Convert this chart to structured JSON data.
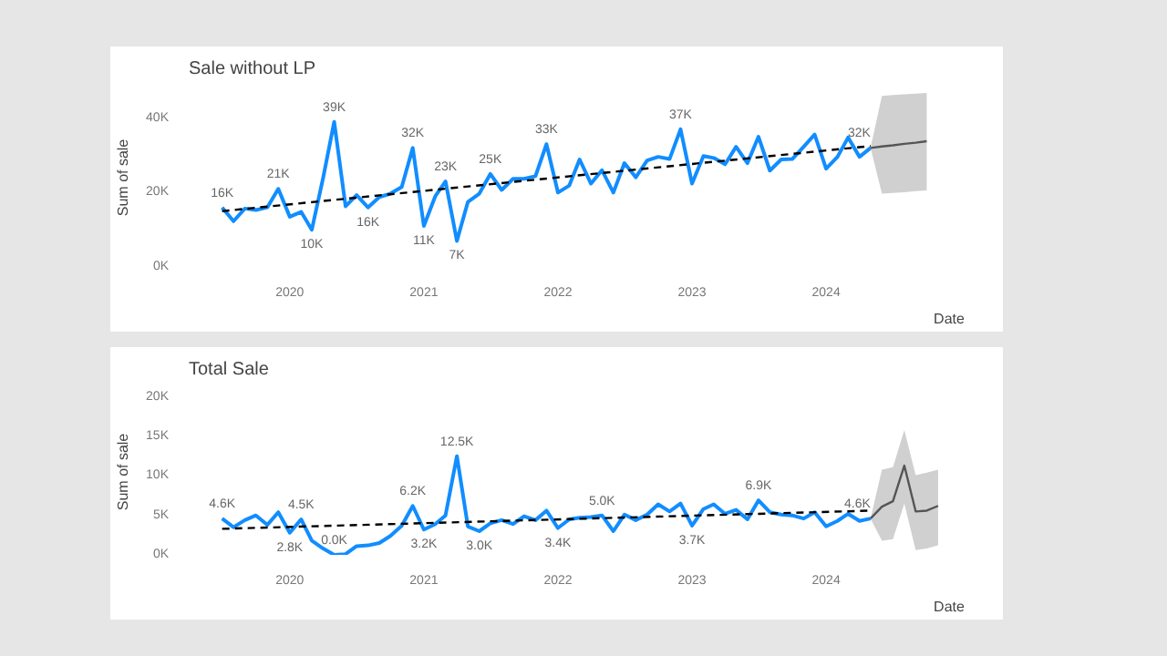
{
  "chart_data": [
    {
      "type": "line",
      "title": "Sale without LP",
      "xlabel": "Date",
      "ylabel": "Sum of sale",
      "xlim": [
        "2019-04",
        "2024-12"
      ],
      "xticks": [
        "2020",
        "2021",
        "2022",
        "2023",
        "2024"
      ],
      "ylim": [
        0,
        48
      ],
      "yticks": [
        {
          "value": 0,
          "label": "0K"
        },
        {
          "value": 20,
          "label": "20K"
        },
        {
          "value": 40,
          "label": "40K"
        }
      ],
      "series": [
        {
          "color": "#118dff",
          "x": [
            "2019-07",
            "2019-08",
            "2019-09",
            "2019-10",
            "2019-11",
            "2019-12",
            "2020-01",
            "2020-02",
            "2020-03",
            "2020-04",
            "2020-05",
            "2020-06",
            "2020-07",
            "2020-08",
            "2020-09",
            "2020-10",
            "2020-11",
            "2020-12",
            "2021-01",
            "2021-02",
            "2021-03",
            "2021-04",
            "2021-05",
            "2021-06",
            "2021-07",
            "2021-08",
            "2021-09",
            "2021-10",
            "2021-11",
            "2021-12",
            "2022-01",
            "2022-02",
            "2022-03",
            "2022-04",
            "2022-05",
            "2022-06",
            "2022-07",
            "2022-08",
            "2022-09",
            "2022-10",
            "2022-11",
            "2022-12",
            "2023-01",
            "2023-02",
            "2023-03",
            "2023-04",
            "2023-05",
            "2023-06",
            "2023-07",
            "2023-08",
            "2023-09",
            "2023-10",
            "2023-11",
            "2023-12",
            "2024-01",
            "2024-02",
            "2024-03",
            "2024-04",
            "2024-05"
          ],
          "values": [
            16,
            12.3,
            15.7,
            15.3,
            16,
            21,
            13.5,
            14.8,
            10,
            24,
            39,
            16.3,
            19.3,
            16,
            18.8,
            19.7,
            21.5,
            32,
            11,
            19,
            23,
            7,
            17.5,
            19.7,
            25,
            20.7,
            23.7,
            23.7,
            24.4,
            33,
            20,
            21.9,
            28.9,
            22.4,
            26,
            20,
            27.9,
            24.1,
            28.6,
            29.6,
            29,
            37,
            22.4,
            29.8,
            29.3,
            27.6,
            32.3,
            27.9,
            35,
            25.9,
            28.9,
            29,
            32.3,
            35.6,
            26.4,
            29.6,
            34.8,
            29.6,
            32
          ],
          "value_labels": [
            "16K",
            null,
            null,
            null,
            null,
            "21K",
            null,
            null,
            "10K",
            null,
            "39K",
            null,
            null,
            "16K",
            null,
            null,
            null,
            "32K",
            "11K",
            null,
            "23K",
            "7K",
            null,
            null,
            "25K",
            null,
            null,
            null,
            null,
            "33K",
            null,
            null,
            null,
            null,
            null,
            null,
            null,
            null,
            null,
            null,
            null,
            "37K",
            null,
            null,
            null,
            null,
            null,
            null,
            null,
            null,
            null,
            null,
            null,
            null,
            null,
            null,
            null,
            null,
            "32K"
          ]
        },
        {
          "color": "#000000",
          "line_style": "dashed",
          "x": [
            "2019-07",
            "2024-05"
          ],
          "values": [
            15,
            32.5
          ]
        },
        {
          "color": "#555555",
          "x": [
            "2024-05",
            "2024-06",
            "2024-07",
            "2024-08",
            "2024-09",
            "2024-10"
          ],
          "values": [
            32,
            32.4,
            32.7,
            33.1,
            33.4,
            33.8
          ],
          "lower": [
            32,
            19.7,
            19.9,
            20.1,
            20.4,
            20.6
          ],
          "upper": [
            32,
            46,
            46.2,
            46.4,
            46.6,
            46.8
          ]
        }
      ]
    },
    {
      "type": "line",
      "title": "Total Sale",
      "xlabel": "Date",
      "ylabel": "Sum of sale",
      "xlim": [
        "2019-04",
        "2024-12"
      ],
      "xticks": [
        "2020",
        "2021",
        "2022",
        "2023",
        "2024"
      ],
      "ylim": [
        0,
        21
      ],
      "yticks": [
        {
          "value": 0,
          "label": "0K"
        },
        {
          "value": 5,
          "label": "5K"
        },
        {
          "value": 10,
          "label": "10K"
        },
        {
          "value": 15,
          "label": "15K"
        },
        {
          "value": 20,
          "label": "20K"
        }
      ],
      "series": [
        {
          "color": "#118dff",
          "x": [
            "2019-07",
            "2019-08",
            "2019-09",
            "2019-10",
            "2019-11",
            "2019-12",
            "2020-01",
            "2020-02",
            "2020-03",
            "2020-04",
            "2020-05",
            "2020-06",
            "2020-07",
            "2020-08",
            "2020-09",
            "2020-10",
            "2020-11",
            "2020-12",
            "2021-01",
            "2021-02",
            "2021-03",
            "2021-04",
            "2021-05",
            "2021-06",
            "2021-07",
            "2021-08",
            "2021-09",
            "2021-10",
            "2021-11",
            "2021-12",
            "2022-01",
            "2022-02",
            "2022-03",
            "2022-04",
            "2022-05",
            "2022-06",
            "2022-07",
            "2022-08",
            "2022-09",
            "2022-10",
            "2022-11",
            "2022-12",
            "2023-01",
            "2023-02",
            "2023-03",
            "2023-04",
            "2023-05",
            "2023-06",
            "2023-07",
            "2023-08",
            "2023-09",
            "2023-10",
            "2023-11",
            "2023-12",
            "2024-01",
            "2024-02",
            "2024-03",
            "2024-04",
            "2024-05"
          ],
          "values": [
            4.6,
            3.5,
            4.4,
            5.0,
            3.8,
            5.4,
            2.8,
            4.5,
            1.8,
            0.8,
            0.0,
            0.1,
            1.1,
            1.2,
            1.5,
            2.4,
            3.7,
            6.2,
            3.2,
            3.9,
            5.0,
            12.5,
            3.6,
            3.0,
            4.0,
            4.4,
            3.9,
            4.9,
            4.4,
            5.6,
            3.4,
            4.5,
            4.7,
            4.8,
            5.0,
            3.0,
            5.1,
            4.4,
            5.1,
            6.4,
            5.5,
            6.5,
            3.7,
            5.8,
            6.4,
            5.2,
            5.7,
            4.5,
            6.9,
            5.4,
            5.1,
            5.0,
            4.6,
            5.4,
            3.6,
            4.3,
            5.2,
            4.3,
            4.6
          ],
          "value_labels": [
            "4.6K",
            null,
            null,
            null,
            null,
            null,
            "2.8K",
            "4.5K",
            null,
            null,
            "0.0K",
            null,
            null,
            null,
            null,
            null,
            null,
            "6.2K",
            "3.2K",
            null,
            null,
            "12.5K",
            null,
            "3.0K",
            null,
            null,
            null,
            null,
            null,
            null,
            "3.4K",
            null,
            null,
            null,
            "5.0K",
            null,
            null,
            null,
            null,
            null,
            null,
            null,
            "3.7K",
            null,
            null,
            null,
            null,
            null,
            "6.9K",
            null,
            null,
            null,
            null,
            null,
            null,
            null,
            null,
            null,
            "4.6K"
          ]
        },
        {
          "color": "#000000",
          "line_style": "dashed",
          "x": [
            "2019-07",
            "2024-05"
          ],
          "values": [
            3.3,
            5.6
          ]
        },
        {
          "color": "#555555",
          "x": [
            "2024-05",
            "2024-06",
            "2024-07",
            "2024-08",
            "2024-09",
            "2024-10",
            "2024-11"
          ],
          "values": [
            4.6,
            6.1,
            6.8,
            11.3,
            5.5,
            5.6,
            6.2
          ],
          "lower": [
            4.6,
            1.8,
            2.0,
            6.5,
            0.6,
            0.8,
            1.2
          ],
          "upper": [
            4.6,
            10.8,
            11.1,
            15.8,
            10.1,
            10.4,
            10.8
          ]
        }
      ]
    }
  ]
}
